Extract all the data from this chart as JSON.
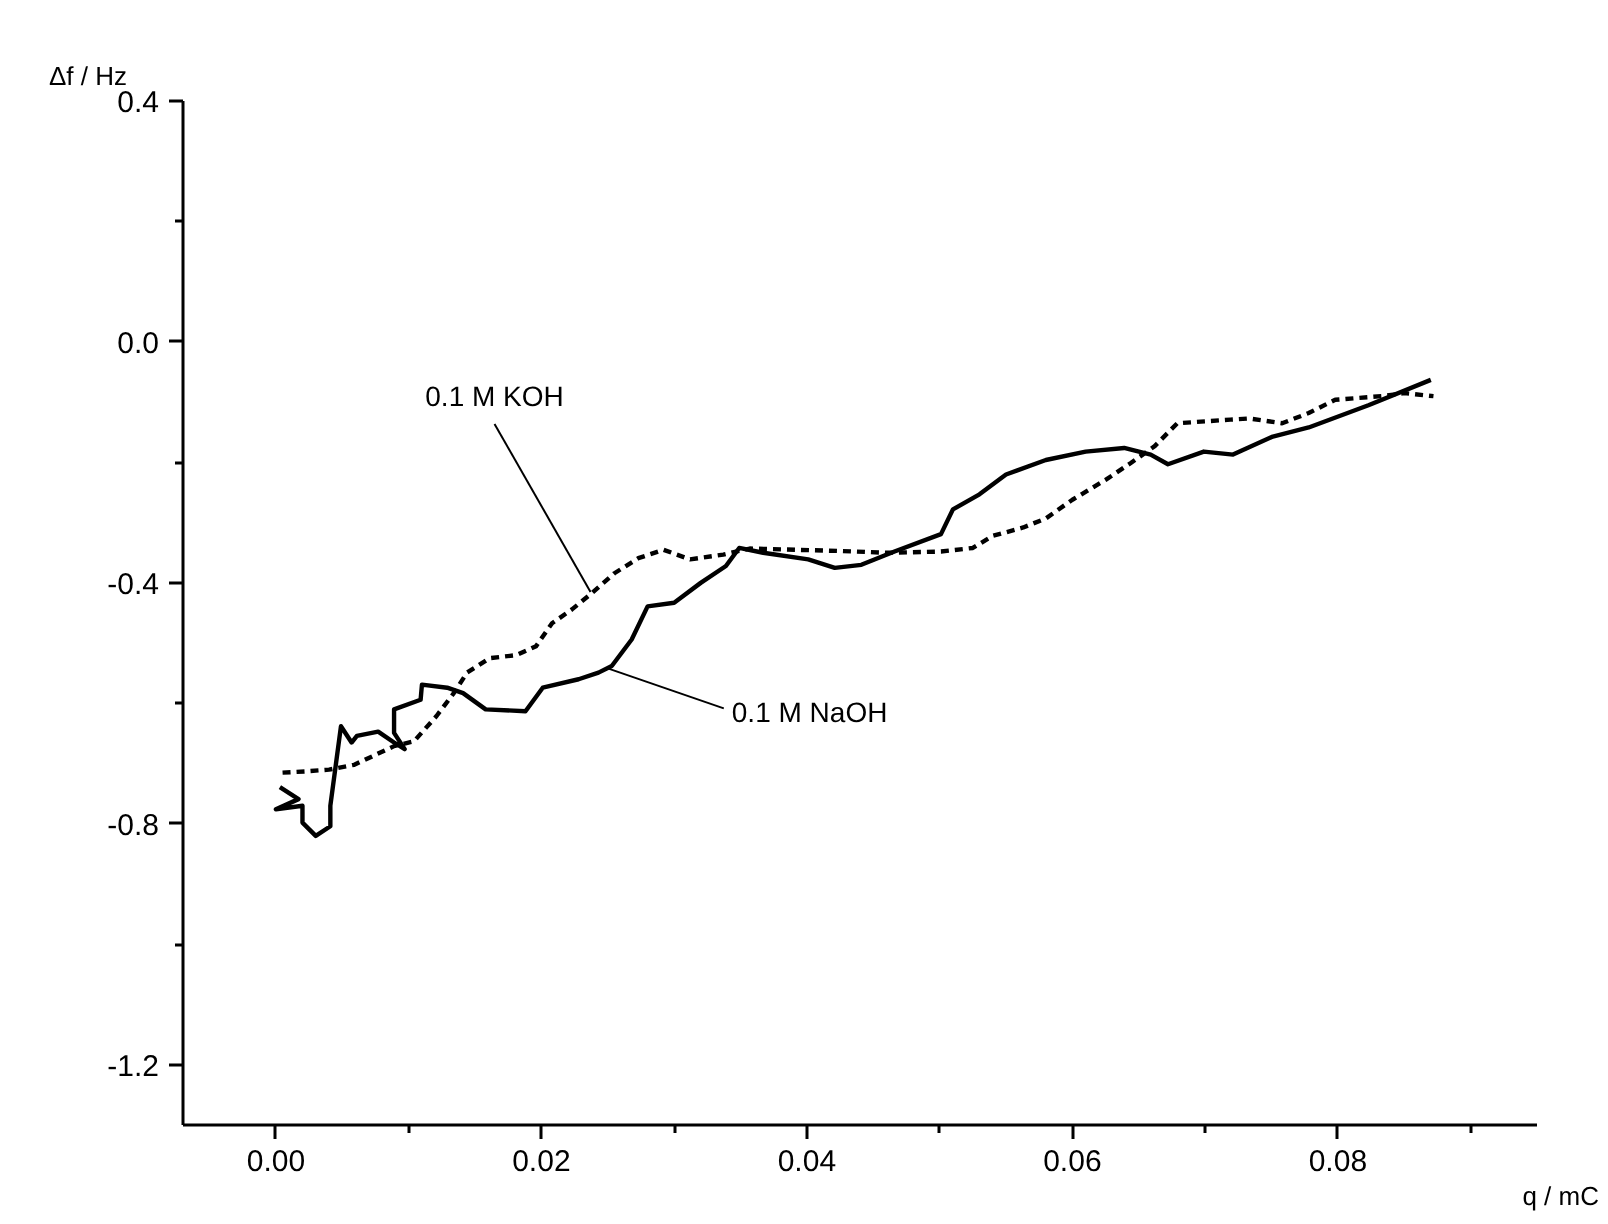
{
  "chart_data": {
    "type": "line",
    "xlabel": "q / mC",
    "ylabel": "Δf / Hz",
    "xlim": [
      -0.007,
      0.095
    ],
    "xticks": [
      {
        "value": 0,
        "label": "0.00"
      },
      {
        "value": 0.02,
        "label": "0.02"
      },
      {
        "value": 0.04,
        "label": "0.04"
      },
      {
        "value": 0.06,
        "label": "0.06"
      },
      {
        "value": 0.08,
        "label": "0.08"
      }
    ],
    "ylim": [
      -1.3,
      0.4
    ],
    "yticks": [
      {
        "value": -1.2,
        "label": "-1.2"
      },
      {
        "value": -0.8,
        "label": "-0.8"
      },
      {
        "value": -0.4,
        "label": "-0.4"
      },
      {
        "value": 0,
        "label": "0.0"
      },
      {
        "value": 0.4,
        "label": "0.4"
      }
    ],
    "marker": "none",
    "series": [
      {
        "color": "#000000",
        "line_style": "solid",
        "x": [
          0.0003,
          0.0017,
          0.0,
          0.002,
          0.002,
          0.003,
          0.0041,
          0.0041,
          0.0049,
          0.0057,
          0.0061,
          0.0077,
          0.0089,
          0.0097,
          0.0089,
          0.0089,
          0.0109,
          0.011,
          0.0129,
          0.0141,
          0.0158,
          0.0188,
          0.0201,
          0.0228,
          0.0243,
          0.0253,
          0.0268,
          0.028,
          0.03,
          0.032,
          0.0339,
          0.0349,
          0.0367,
          0.0401,
          0.0421,
          0.0441,
          0.0466,
          0.0501,
          0.051,
          0.053,
          0.055,
          0.058,
          0.061,
          0.0639,
          0.0659,
          0.0672,
          0.0699,
          0.0721,
          0.0751,
          0.0778,
          0.0823,
          0.087
        ],
        "values": [
          -0.739,
          -0.759,
          -0.776,
          -0.77,
          -0.798,
          -0.82,
          -0.804,
          -0.77,
          -0.638,
          -0.665,
          -0.654,
          -0.647,
          -0.665,
          -0.676,
          -0.649,
          -0.61,
          -0.594,
          -0.569,
          -0.574,
          -0.583,
          -0.61,
          -0.613,
          -0.574,
          -0.56,
          -0.549,
          -0.538,
          -0.494,
          -0.439,
          -0.433,
          -0.4,
          -0.372,
          -0.342,
          -0.35,
          -0.361,
          -0.375,
          -0.37,
          -0.348,
          -0.319,
          -0.278,
          -0.253,
          -0.22,
          -0.196,
          -0.182,
          -0.176,
          -0.187,
          -0.203,
          -0.182,
          -0.187,
          -0.157,
          -0.142,
          -0.105,
          -0.063
        ]
      },
      {
        "color": "#000000",
        "line_style": "dashed",
        "x": [
          0.0005,
          0.0022,
          0.004,
          0.0059,
          0.0089,
          0.0104,
          0.0121,
          0.0134,
          0.0144,
          0.0161,
          0.0181,
          0.0196,
          0.0208,
          0.0223,
          0.0238,
          0.0255,
          0.0273,
          0.0292,
          0.0312,
          0.0337,
          0.0357,
          0.0424,
          0.0461,
          0.0501,
          0.0525,
          0.054,
          0.0563,
          0.058,
          0.06,
          0.0625,
          0.0644,
          0.0662,
          0.0679,
          0.0719,
          0.0733,
          0.0758,
          0.0778,
          0.0798,
          0.0833,
          0.085,
          0.0872
        ],
        "values": [
          -0.715,
          -0.713,
          -0.71,
          -0.702,
          -0.671,
          -0.663,
          -0.621,
          -0.583,
          -0.549,
          -0.525,
          -0.52,
          -0.505,
          -0.467,
          -0.444,
          -0.417,
          -0.384,
          -0.359,
          -0.345,
          -0.361,
          -0.353,
          -0.343,
          -0.347,
          -0.35,
          -0.348,
          -0.342,
          -0.322,
          -0.308,
          -0.293,
          -0.262,
          -0.229,
          -0.201,
          -0.173,
          -0.135,
          -0.129,
          -0.127,
          -0.135,
          -0.118,
          -0.096,
          -0.09,
          -0.085,
          -0.09
        ]
      }
    ],
    "annotations": [
      {
        "text": "0.1 M KOH",
        "x": 0.0237,
        "y": -0.415
      },
      {
        "text": "0.1 M NaOH",
        "x": 0.025,
        "y": -0.542
      }
    ]
  }
}
